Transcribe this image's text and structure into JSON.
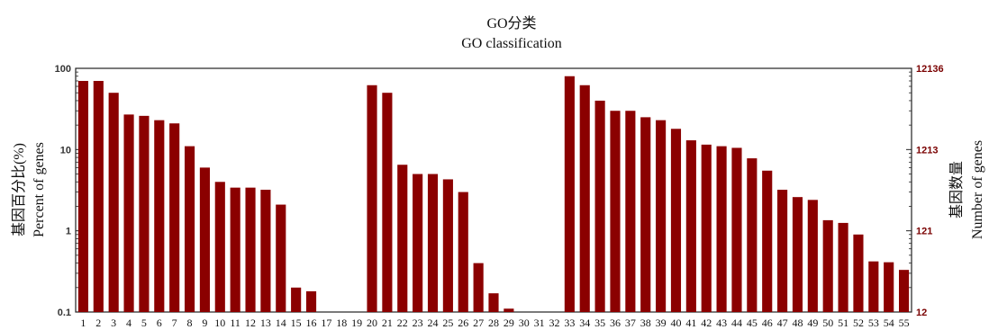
{
  "chart_data": {
    "type": "bar",
    "title": "GO分类",
    "subtitle": "GO classification",
    "ylabel_left_cn": "基因百分比(%)",
    "ylabel_left_en": "Percent of genes",
    "ylabel_right_cn": "基因数量",
    "ylabel_right_en": "Number of genes",
    "yscale": "log",
    "ylim": [
      0.1,
      100
    ],
    "yticks_left": [
      "0.1",
      "1",
      "10",
      "100"
    ],
    "yticks_right": [
      "12",
      "121",
      "1213",
      "12136"
    ],
    "bar_color": "#8b0000",
    "categories": [
      "1",
      "2",
      "3",
      "4",
      "5",
      "6",
      "7",
      "8",
      "9",
      "10",
      "11",
      "12",
      "13",
      "14",
      "15",
      "16",
      "17",
      "18",
      "19",
      "20",
      "21",
      "22",
      "23",
      "24",
      "25",
      "26",
      "27",
      "28",
      "29",
      "30",
      "31",
      "32",
      "33",
      "34",
      "35",
      "36",
      "37",
      "38",
      "39",
      "40",
      "41",
      "42",
      "43",
      "44",
      "45",
      "46",
      "47",
      "48",
      "49",
      "50",
      "51",
      "52",
      "53",
      "54",
      "55"
    ],
    "values": [
      70,
      70,
      50,
      27,
      26,
      23,
      21,
      11,
      6,
      4,
      3.4,
      3.4,
      3.2,
      2.1,
      0.2,
      0.18,
      null,
      null,
      null,
      62,
      50,
      6.5,
      5,
      5,
      4.3,
      3,
      0.4,
      0.17,
      0.11,
      null,
      null,
      null,
      80,
      62,
      40,
      30,
      30,
      25,
      23,
      18,
      13,
      11.5,
      11,
      10.5,
      7.8,
      5.5,
      3.2,
      2.6,
      2.4,
      1.35,
      1.25,
      0.9,
      0.42,
      0.41,
      0.33
    ]
  }
}
